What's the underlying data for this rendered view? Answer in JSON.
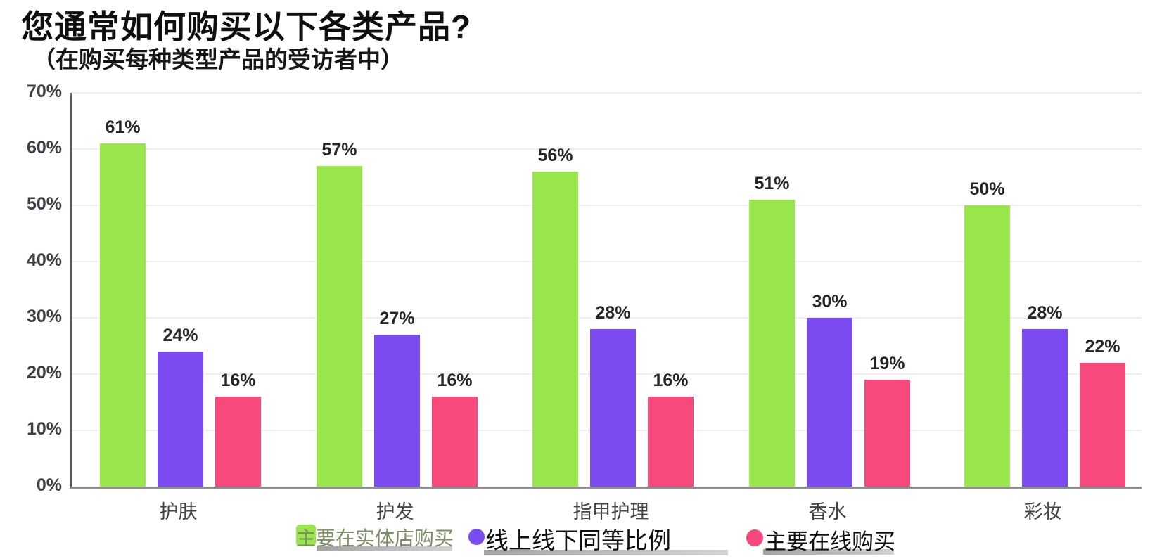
{
  "title": "您通常如何购买以下各类产品?",
  "subtitle": "（在购买每种类型产品的受访者中）",
  "chart_data": {
    "type": "bar",
    "title": "您通常如何购买以下各类产品?",
    "subtitle": "（在购买每种类型产品的受访者中）",
    "categories": [
      "护肤",
      "护发",
      "指甲护理",
      "香水",
      "彩妆"
    ],
    "series": [
      {
        "name": "主要在实体店购买",
        "color": "#98E54C",
        "values": [
          61,
          57,
          56,
          51,
          50
        ]
      },
      {
        "name": "线上线下同等比例",
        "color": "#7B4AF0",
        "values": [
          24,
          27,
          28,
          30,
          28
        ]
      },
      {
        "name": "主要在线购买",
        "color": "#F7497B",
        "values": [
          16,
          16,
          16,
          19,
          22
        ]
      }
    ],
    "xlabel": "",
    "ylabel": "",
    "ylim": [
      0,
      70
    ],
    "ytick_step": 10,
    "ytick_labels": [
      "0%",
      "10%",
      "20%",
      "30%",
      "40%",
      "50%",
      "60%",
      "70%"
    ],
    "grid": true,
    "legend_position": "bottom",
    "value_label_format": "{v}%"
  },
  "legend": {
    "items": [
      {
        "swatch": "square",
        "text_color": "#7D8F63"
      },
      {
        "swatch": "circle",
        "text_color": "#111111"
      },
      {
        "swatch": "circle",
        "text_color": "#111111"
      }
    ]
  }
}
